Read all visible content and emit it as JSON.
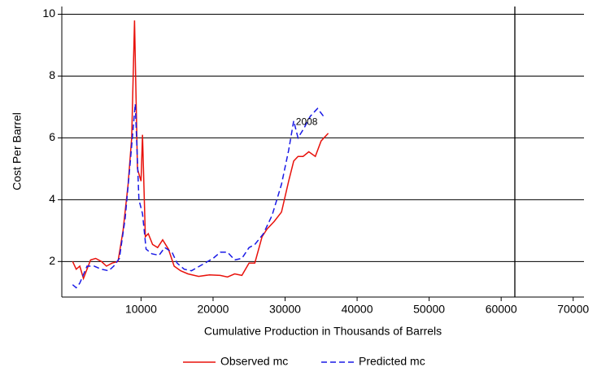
{
  "chart_data": {
    "type": "line",
    "x_label": "Cumulative Production in Thousands of Barrels",
    "y_label": "Cost Per Barrel",
    "xlim": [
      -1000,
      71500
    ],
    "ylim": [
      0.85,
      10.25
    ],
    "xticks": [
      10000,
      20000,
      30000,
      40000,
      50000,
      60000,
      70000
    ],
    "yticks": [
      2,
      4,
      6,
      8,
      10
    ],
    "grid": true,
    "vline": 61900,
    "annotations": [
      {
        "text": "2008",
        "x": 31500,
        "y": 6.5
      }
    ],
    "series": [
      {
        "name": "Observed mc",
        "color": "#e8120c",
        "style": "solid",
        "x": [
          500,
          1000,
          1500,
          2000,
          3000,
          3700,
          4500,
          5200,
          6000,
          6800,
          7500,
          8200,
          8700,
          9100,
          9500,
          10000,
          10200,
          10600,
          11000,
          11600,
          12300,
          13000,
          13800,
          14600,
          15500,
          16500,
          18000,
          19500,
          21000,
          22000,
          23000,
          24000,
          25000,
          25800,
          26800,
          27500,
          28500,
          29500,
          30500,
          31200,
          31800,
          32500,
          33300,
          34200,
          35000,
          36000
        ],
        "values": [
          2.0,
          1.75,
          1.85,
          1.45,
          2.05,
          2.1,
          2.0,
          1.85,
          1.95,
          2.0,
          3.0,
          4.5,
          6.0,
          9.8,
          5.0,
          4.6,
          6.1,
          2.8,
          2.9,
          2.55,
          2.45,
          2.7,
          2.4,
          1.85,
          1.7,
          1.6,
          1.52,
          1.57,
          1.55,
          1.5,
          1.6,
          1.55,
          1.95,
          1.95,
          2.8,
          3.05,
          3.3,
          3.6,
          4.6,
          5.25,
          5.4,
          5.4,
          5.55,
          5.4,
          5.9,
          6.15
        ]
      },
      {
        "name": "Predicted mc",
        "color": "#1a1ae6",
        "style": "dashed",
        "x": [
          500,
          1000,
          1500,
          2500,
          3500,
          4500,
          5500,
          6200,
          7000,
          7800,
          8500,
          9200,
          9700,
          10200,
          10700,
          11500,
          12500,
          13300,
          14300,
          15000,
          16000,
          17000,
          18500,
          20000,
          21000,
          22000,
          23000,
          24000,
          25000,
          25800,
          27000,
          28200,
          29500,
          30500,
          31200,
          31800,
          32600,
          33500,
          34500,
          35500
        ],
        "values": [
          1.25,
          1.15,
          1.3,
          1.85,
          1.85,
          1.75,
          1.7,
          1.85,
          2.1,
          3.4,
          5.2,
          7.1,
          4.0,
          3.55,
          2.4,
          2.25,
          2.2,
          2.45,
          2.3,
          1.95,
          1.75,
          1.7,
          1.9,
          2.1,
          2.3,
          2.3,
          2.05,
          2.1,
          2.45,
          2.55,
          2.9,
          3.5,
          4.5,
          5.6,
          6.55,
          6.0,
          6.3,
          6.7,
          6.95,
          6.65
        ]
      }
    ]
  }
}
